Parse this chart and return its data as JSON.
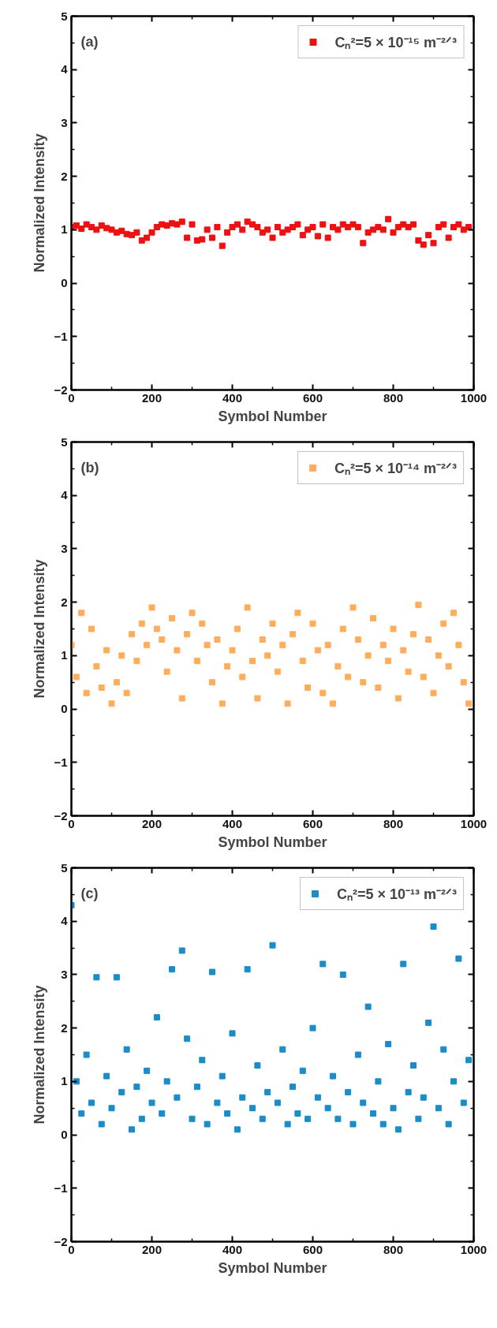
{
  "chart_data": [
    {
      "type": "scatter",
      "annotations": [
        "(a)"
      ],
      "xlabel": "Symbol Number",
      "ylabel": "Normalized Intensity",
      "xlim": [
        0,
        1000
      ],
      "xticks": [
        0,
        200,
        400,
        600,
        800,
        1000
      ],
      "ylim": [
        -2,
        5
      ],
      "yticks": [
        -2,
        -1,
        0,
        1,
        2,
        3,
        4,
        5
      ],
      "legend": "top right",
      "marker": "square",
      "grid": false,
      "series": [
        {
          "name": "Cₙ²=5 × 10⁻¹⁵ m⁻²ᐟ³",
          "color": "#ee1111",
          "x": [
            0,
            12.5,
            25,
            37.5,
            50,
            62.5,
            75,
            87.5,
            100,
            112.5,
            125,
            137.5,
            150,
            162.5,
            175,
            187.5,
            200,
            212.5,
            225,
            237.5,
            250,
            262.5,
            275,
            287.5,
            300,
            312.5,
            325,
            337.5,
            350,
            362.5,
            375,
            387.5,
            400,
            412.5,
            425,
            437.5,
            450,
            462.5,
            475,
            487.5,
            500,
            512.5,
            525,
            537.5,
            550,
            562.5,
            575,
            587.5,
            600,
            612.5,
            625,
            637.5,
            650,
            662.5,
            675,
            687.5,
            700,
            712.5,
            725,
            737.5,
            750,
            762.5,
            775,
            787.5,
            800,
            812.5,
            825,
            837.5,
            850,
            862.5,
            875,
            887.5,
            900,
            912.5,
            925,
            937.5,
            950,
            962.5,
            975,
            987.5
          ],
          "values": [
            1.05,
            1.08,
            1.02,
            1.1,
            1.05,
            1.0,
            1.08,
            1.03,
            1.0,
            0.95,
            0.98,
            0.92,
            0.9,
            0.95,
            0.8,
            0.85,
            0.95,
            1.05,
            1.1,
            1.08,
            1.12,
            1.1,
            1.15,
            0.85,
            1.1,
            0.8,
            0.82,
            1.0,
            0.85,
            1.05,
            0.7,
            0.95,
            1.05,
            1.1,
            1.0,
            1.15,
            1.1,
            1.05,
            0.95,
            1.0,
            0.85,
            1.05,
            0.95,
            1.0,
            1.05,
            1.1,
            0.9,
            1.0,
            1.05,
            0.88,
            1.1,
            0.85,
            1.05,
            1.0,
            1.1,
            1.05,
            1.1,
            1.05,
            0.75,
            0.95,
            1.0,
            1.05,
            1.0,
            1.2,
            0.95,
            1.05,
            1.1,
            1.05,
            1.1,
            0.8,
            0.72,
            0.9,
            0.75,
            1.05,
            1.1,
            0.85,
            1.05,
            1.1,
            1.0,
            1.05
          ]
        }
      ]
    },
    {
      "type": "scatter",
      "annotations": [
        "(b)"
      ],
      "xlabel": "Symbol Number",
      "ylabel": "Normalized Intensity",
      "xlim": [
        0,
        1000
      ],
      "xticks": [
        0,
        200,
        400,
        600,
        800,
        1000
      ],
      "ylim": [
        -2,
        5
      ],
      "yticks": [
        -2,
        -1,
        0,
        1,
        2,
        3,
        4,
        5
      ],
      "legend": "top right",
      "marker": "square",
      "grid": false,
      "series": [
        {
          "name": "Cₙ²=5 × 10⁻¹⁴ m⁻²ᐟ³",
          "color": "#ffad5c",
          "x": [
            0,
            12.5,
            25,
            37.5,
            50,
            62.5,
            75,
            87.5,
            100,
            112.5,
            125,
            137.5,
            150,
            162.5,
            175,
            187.5,
            200,
            212.5,
            225,
            237.5,
            250,
            262.5,
            275,
            287.5,
            300,
            312.5,
            325,
            337.5,
            350,
            362.5,
            375,
            387.5,
            400,
            412.5,
            425,
            437.5,
            450,
            462.5,
            475,
            487.5,
            500,
            512.5,
            525,
            537.5,
            550,
            562.5,
            575,
            587.5,
            600,
            612.5,
            625,
            637.5,
            650,
            662.5,
            675,
            687.5,
            700,
            712.5,
            725,
            737.5,
            750,
            762.5,
            775,
            787.5,
            800,
            812.5,
            825,
            837.5,
            850,
            862.5,
            875,
            887.5,
            900,
            912.5,
            925,
            937.5,
            950,
            962.5,
            975,
            987.5
          ],
          "values": [
            1.2,
            0.6,
            1.8,
            0.3,
            1.5,
            0.8,
            0.4,
            1.1,
            0.1,
            0.5,
            1.0,
            0.3,
            1.4,
            0.9,
            1.6,
            1.2,
            1.9,
            1.5,
            1.3,
            0.7,
            1.7,
            1.1,
            0.2,
            1.4,
            1.8,
            0.9,
            1.6,
            1.2,
            0.5,
            1.3,
            0.1,
            0.8,
            1.1,
            1.5,
            0.6,
            1.9,
            0.9,
            0.2,
            1.3,
            1.0,
            1.6,
            0.7,
            1.2,
            0.1,
            1.4,
            1.8,
            0.9,
            0.4,
            1.6,
            1.1,
            0.3,
            1.2,
            0.1,
            0.8,
            1.5,
            0.6,
            1.9,
            1.3,
            0.5,
            1.0,
            1.7,
            0.4,
            1.2,
            0.9,
            1.5,
            0.2,
            1.1,
            0.7,
            1.4,
            1.95,
            0.6,
            1.3,
            0.3,
            1.0,
            1.6,
            0.8,
            1.8,
            1.2,
            0.5,
            0.1
          ]
        }
      ]
    },
    {
      "type": "scatter",
      "annotations": [
        "(c)"
      ],
      "xlabel": "Symbol Number",
      "ylabel": "Normalized Intensity",
      "xlim": [
        0,
        1000
      ],
      "xticks": [
        0,
        200,
        400,
        600,
        800,
        1000
      ],
      "ylim": [
        -2,
        5
      ],
      "yticks": [
        -2,
        -1,
        0,
        1,
        2,
        3,
        4,
        5
      ],
      "legend": "top right",
      "marker": "square",
      "grid": false,
      "series": [
        {
          "name": "Cₙ²=5 × 10⁻¹³ m⁻²ᐟ³",
          "color": "#1a8cc8",
          "x": [
            0,
            12.5,
            25,
            37.5,
            50,
            62.5,
            75,
            87.5,
            100,
            112.5,
            125,
            137.5,
            150,
            162.5,
            175,
            187.5,
            200,
            212.5,
            225,
            237.5,
            250,
            262.5,
            275,
            287.5,
            300,
            312.5,
            325,
            337.5,
            350,
            362.5,
            375,
            387.5,
            400,
            412.5,
            425,
            437.5,
            450,
            462.5,
            475,
            487.5,
            500,
            512.5,
            525,
            537.5,
            550,
            562.5,
            575,
            587.5,
            600,
            612.5,
            625,
            637.5,
            650,
            662.5,
            675,
            687.5,
            700,
            712.5,
            725,
            737.5,
            750,
            762.5,
            775,
            787.5,
            800,
            812.5,
            825,
            837.5,
            850,
            862.5,
            875,
            887.5,
            900,
            912.5,
            925,
            937.5,
            950,
            962.5,
            975,
            987.5
          ],
          "values": [
            4.3,
            1.0,
            0.4,
            1.5,
            0.6,
            2.95,
            0.2,
            1.1,
            0.5,
            2.95,
            0.8,
            1.6,
            0.1,
            0.9,
            0.3,
            1.2,
            0.6,
            2.2,
            0.4,
            1.0,
            3.1,
            0.7,
            3.45,
            1.8,
            0.3,
            0.9,
            1.4,
            0.2,
            3.05,
            0.6,
            1.1,
            0.4,
            1.9,
            0.1,
            0.7,
            3.1,
            0.5,
            1.3,
            0.3,
            0.8,
            3.55,
            0.6,
            1.6,
            0.2,
            0.9,
            0.4,
            1.2,
            0.3,
            2.0,
            0.7,
            3.2,
            0.5,
            1.1,
            0.3,
            3.0,
            0.8,
            0.2,
            1.5,
            0.6,
            2.4,
            0.4,
            1.0,
            0.2,
            1.7,
            0.5,
            0.1,
            3.2,
            0.8,
            1.3,
            0.3,
            0.7,
            2.1,
            3.9,
            0.5,
            1.6,
            0.2,
            1.0,
            3.3,
            0.6,
            1.4
          ]
        }
      ]
    }
  ]
}
